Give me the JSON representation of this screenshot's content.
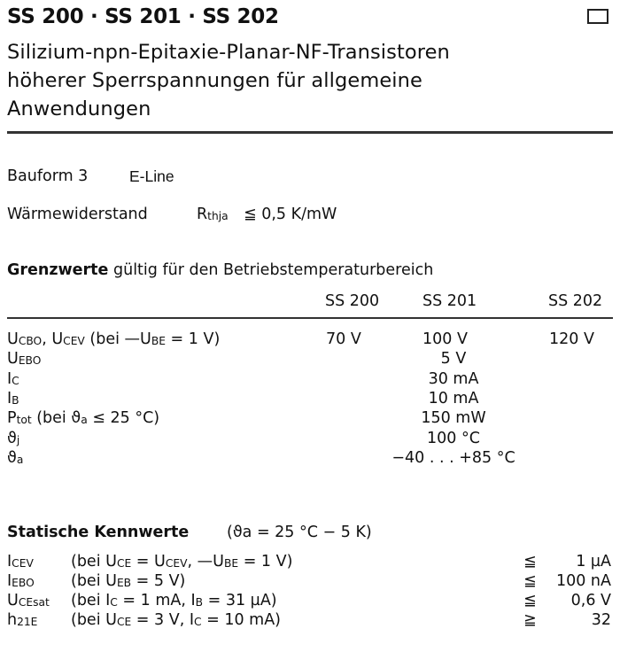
{
  "header": {
    "title": "SS 200 · SS 201 · SS 202",
    "subtitle_lines": [
      "Silizium-npn-Epitaxie-Planar-NF-Transistoren",
      "höherer Sperrspannungen für allgemeine",
      "Anwendungen"
    ]
  },
  "bauform": {
    "label": "Bauform 3",
    "value": "E-Line"
  },
  "waermewiderstand": {
    "label": "Wärmewiderstand",
    "symbol": "R",
    "symbol_sub": "thja",
    "value": "≦ 0,5 K/mW"
  },
  "grenzwerte": {
    "heading_bold": "Grenzwerte",
    "heading_rest": "gültig für den Betriebstemperaturbereich",
    "columns": [
      "SS 200",
      "SS 201",
      "SS 202"
    ],
    "rows": [
      {
        "label": [
          [
            "U",
            ""
          ],
          [
            "CBO",
            "s"
          ],
          [
            ", U",
            ""
          ],
          [
            "CEV",
            "s"
          ],
          [
            " (bei —U",
            ""
          ],
          [
            "BE",
            "s"
          ],
          [
            " = 1 V)",
            ""
          ]
        ],
        "values": [
          "70 V",
          "100 V",
          "120 V"
        ]
      },
      {
        "label": [
          [
            "U",
            ""
          ],
          [
            "EBO",
            "s"
          ]
        ],
        "common": "5 V"
      },
      {
        "label": [
          [
            "I",
            ""
          ],
          [
            "C",
            "s"
          ]
        ],
        "common": "30 mA"
      },
      {
        "label": [
          [
            "I",
            ""
          ],
          [
            "B",
            "s"
          ]
        ],
        "common": "10 mA"
      },
      {
        "label": [
          [
            "P",
            ""
          ],
          [
            "tot",
            "s"
          ],
          [
            " (bei ϑ",
            ""
          ],
          [
            "a",
            "s"
          ],
          [
            " ≤ 25 °C)",
            ""
          ]
        ],
        "common": "150 mW"
      },
      {
        "label": [
          [
            "ϑ",
            ""
          ],
          [
            "j",
            "s"
          ]
        ],
        "common": "100 °C"
      },
      {
        "label": [
          [
            "ϑ",
            ""
          ],
          [
            "a",
            "s"
          ]
        ],
        "common": "−40 . . . +85 °C"
      }
    ]
  },
  "statische": {
    "heading": "Statische Kennwerte",
    "condition": "(ϑa = 25 °C − 5 K)",
    "rows": [
      {
        "label": [
          [
            "I",
            ""
          ],
          [
            "CEV",
            "s"
          ]
        ],
        "cond": [
          [
            "(bei U",
            ""
          ],
          [
            "CE",
            "s"
          ],
          [
            " = U",
            ""
          ],
          [
            "CEV",
            "s"
          ],
          [
            ", —U",
            ""
          ],
          [
            "BE",
            "s"
          ],
          [
            " = 1 V)",
            ""
          ]
        ],
        "rel": "≦",
        "value": "1 µA"
      },
      {
        "label": [
          [
            "I",
            ""
          ],
          [
            "EBO",
            "s"
          ]
        ],
        "cond": [
          [
            "(bei U",
            ""
          ],
          [
            "EB",
            "s"
          ],
          [
            " = 5 V)",
            ""
          ]
        ],
        "rel": "≦",
        "value": "100 nA"
      },
      {
        "label": [
          [
            "U",
            ""
          ],
          [
            "CEsat",
            "s"
          ]
        ],
        "cond": [
          [
            "(bei I",
            ""
          ],
          [
            "C",
            "s"
          ],
          [
            "  = 1 mA, I",
            ""
          ],
          [
            "B",
            "s"
          ],
          [
            " = 31 µA)",
            ""
          ]
        ],
        "rel": "≦",
        "value": "0,6 V"
      },
      {
        "label": [
          [
            "h",
            ""
          ],
          [
            "21E",
            "s"
          ]
        ],
        "cond": [
          [
            "(bei U",
            ""
          ],
          [
            "CE",
            "s"
          ],
          [
            " = 3 V,  I",
            ""
          ],
          [
            "C",
            "s"
          ],
          [
            " = 10 mA)",
            ""
          ]
        ],
        "rel": "≧",
        "value": "32"
      }
    ]
  }
}
